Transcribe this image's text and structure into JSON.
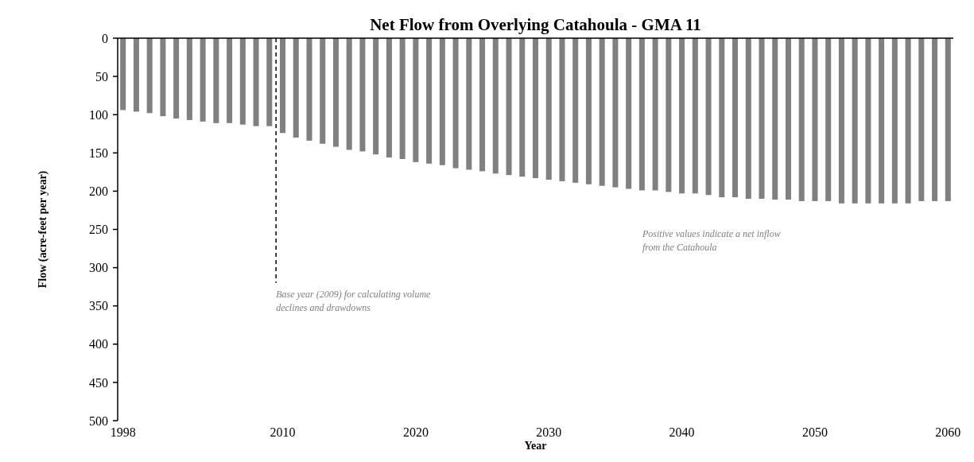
{
  "chart_data": {
    "type": "bar",
    "title": "Net Flow from Overlying  Catahoula - GMA 11",
    "xlabel": "Year",
    "ylabel": "Flow (acre-feet per year)",
    "x": [
      1998,
      1999,
      2000,
      2001,
      2002,
      2003,
      2004,
      2005,
      2006,
      2007,
      2008,
      2009,
      2010,
      2011,
      2012,
      2013,
      2014,
      2015,
      2016,
      2017,
      2018,
      2019,
      2020,
      2021,
      2022,
      2023,
      2024,
      2025,
      2026,
      2027,
      2028,
      2029,
      2030,
      2031,
      2032,
      2033,
      2034,
      2035,
      2036,
      2037,
      2038,
      2039,
      2040,
      2041,
      2042,
      2043,
      2044,
      2045,
      2046,
      2047,
      2048,
      2049,
      2050,
      2051,
      2052,
      2053,
      2054,
      2055,
      2056,
      2057,
      2058,
      2059,
      2060
    ],
    "values": [
      94,
      96,
      98,
      102,
      105,
      107,
      109,
      111,
      111,
      113,
      115,
      115,
      124,
      130,
      134,
      138,
      142,
      146,
      148,
      152,
      156,
      158,
      162,
      164,
      166,
      170,
      172,
      174,
      177,
      179,
      181,
      183,
      185,
      187,
      189,
      191,
      193,
      195,
      197,
      199,
      199,
      201,
      203,
      203,
      205,
      208,
      208,
      210,
      210,
      211,
      211,
      213,
      213,
      213,
      216,
      216,
      216,
      216,
      216,
      216,
      213,
      213,
      213
    ],
    "color": "#808080",
    "xlim": [
      1997.6,
      2060.4
    ],
    "xticks": [
      1998,
      2010,
      2020,
      2030,
      2040,
      2050,
      2060
    ],
    "ylim": [
      500,
      0
    ],
    "yticks": [
      0,
      50,
      100,
      150,
      200,
      250,
      300,
      350,
      400,
      450,
      500
    ],
    "grid": false,
    "ref_lines": [
      {
        "axis": "x",
        "value": 2009.5,
        "label": "Base year (2009) for calculating volume declines and drawdowns",
        "color": "#000000",
        "line_style": "dashed"
      }
    ],
    "annotations": [
      "Positive values indicate a net inflow from the Catahoula"
    ]
  }
}
